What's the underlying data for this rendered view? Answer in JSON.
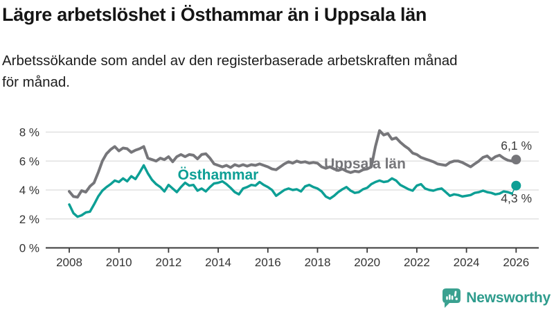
{
  "header": {
    "title": "Lägre arbetslöshet i Östhammar än i Uppsala län",
    "subtitle_line1": "Arbetssökande som andel av den registerbaserade arbetskraften månad",
    "subtitle_line2": "för månad."
  },
  "branding": {
    "name": "Newsworthy",
    "icon": "speech-bubble-bar-chart",
    "color": "#2e9c8d"
  },
  "colors": {
    "uppsala_line": "#76767a",
    "osthammar_line": "#0d9f95",
    "gridline": "#dcdcdc",
    "axis": "#3a3a3a",
    "tick_label": "#333333",
    "end_label": "#3a3a3a"
  },
  "chart_data": {
    "type": "line",
    "title": "Lägre arbetslöshet i Östhammar än i Uppsala län",
    "xlabel": "",
    "ylabel": "Arbetssökande som andel av den registerbaserade arbetskraften",
    "grid": true,
    "legend_position": "inline-labels",
    "x_start_year": 2008,
    "x_step_months": 2,
    "x_tick_years": [
      2008,
      2010,
      2012,
      2014,
      2016,
      2018,
      2020,
      2022,
      2024,
      2026
    ],
    "y_ticks": [
      {
        "value": 0,
        "label": "0 %"
      },
      {
        "value": 2,
        "label": "2 %"
      },
      {
        "value": 4,
        "label": "4 %"
      },
      {
        "value": 6,
        "label": "6 %"
      },
      {
        "value": 8,
        "label": "8 %"
      }
    ],
    "ylim": [
      0,
      8.6
    ],
    "xlim": [
      2007.05,
      2026.9
    ],
    "series": [
      {
        "name": "Uppsala län",
        "color": "#76767a",
        "stroke_width": 4,
        "end_label": "6,1 %",
        "latest_value": 6.1,
        "end_dot": true,
        "thin_final_segment": false,
        "values": [
          3.9,
          3.55,
          3.5,
          3.95,
          3.85,
          4.25,
          4.5,
          5.2,
          6.0,
          6.5,
          6.8,
          7.0,
          6.7,
          6.9,
          6.85,
          6.6,
          6.75,
          6.85,
          7.0,
          6.2,
          6.1,
          6.0,
          6.2,
          6.1,
          6.3,
          5.95,
          6.3,
          6.45,
          6.3,
          6.45,
          6.4,
          6.15,
          6.45,
          6.5,
          6.2,
          5.8,
          5.7,
          5.6,
          5.7,
          5.55,
          5.75,
          5.65,
          5.75,
          5.65,
          5.75,
          5.7,
          5.8,
          5.7,
          5.6,
          5.45,
          5.4,
          5.6,
          5.8,
          5.95,
          5.85,
          6.0,
          5.9,
          5.95,
          5.85,
          5.9,
          5.85,
          5.6,
          5.5,
          5.6,
          5.45,
          5.35,
          5.45,
          5.3,
          5.2,
          5.3,
          5.25,
          5.4,
          5.45,
          5.6,
          7.0,
          8.1,
          7.8,
          7.9,
          7.5,
          7.6,
          7.3,
          7.05,
          6.85,
          6.55,
          6.45,
          6.25,
          6.15,
          6.05,
          5.95,
          5.8,
          5.75,
          5.7,
          5.9,
          6.0,
          6.0,
          5.9,
          5.75,
          5.6,
          5.8,
          6.0,
          6.25,
          6.35,
          6.1,
          6.3,
          6.4,
          6.2,
          6.05,
          6.0,
          6.1
        ]
      },
      {
        "name": "Östhammar",
        "color": "#0d9f95",
        "stroke_width": 3.5,
        "end_label": "4,3 %",
        "latest_value": 4.3,
        "end_dot": true,
        "thin_final_segment": true,
        "values": [
          3.0,
          2.4,
          2.15,
          2.25,
          2.45,
          2.5,
          3.0,
          3.55,
          3.95,
          4.2,
          4.4,
          4.65,
          4.55,
          4.8,
          4.6,
          4.95,
          4.75,
          5.2,
          5.7,
          5.15,
          4.7,
          4.4,
          4.2,
          3.9,
          4.35,
          4.1,
          3.85,
          4.2,
          4.5,
          4.3,
          4.35,
          3.95,
          4.1,
          3.9,
          4.2,
          4.45,
          4.5,
          4.6,
          4.4,
          4.15,
          3.85,
          3.7,
          4.1,
          4.2,
          4.35,
          4.3,
          4.55,
          4.35,
          4.2,
          4.0,
          3.6,
          3.8,
          4.0,
          4.1,
          4.0,
          4.05,
          3.9,
          4.25,
          4.35,
          4.2,
          4.1,
          3.9,
          3.55,
          3.4,
          3.6,
          3.85,
          4.05,
          4.2,
          3.95,
          3.8,
          3.85,
          4.05,
          4.15,
          4.4,
          4.55,
          4.65,
          4.55,
          4.6,
          4.8,
          4.65,
          4.35,
          4.2,
          4.05,
          3.95,
          4.3,
          4.4,
          4.1,
          4.0,
          3.95,
          4.05,
          4.1,
          3.85,
          3.6,
          3.7,
          3.65,
          3.55,
          3.6,
          3.65,
          3.8,
          3.85,
          3.95,
          3.85,
          3.8,
          3.7,
          3.75,
          3.9,
          3.85,
          3.75,
          4.3
        ]
      }
    ]
  }
}
